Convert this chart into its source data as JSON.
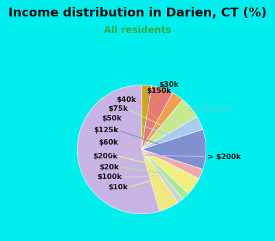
{
  "title": "Income distribution in Darien, CT (%)",
  "subtitle": "All residents",
  "bg_color": "#00EEEE",
  "chart_bg_top": "#e8f8f8",
  "chart_bg_bot": "#d8f0d8",
  "watermark": "City-Data.com",
  "title_fontsize": 13,
  "subtitle_fontsize": 10,
  "subtitle_color": "#33aa44",
  "label_fontsize": 7.5,
  "labels": [
    "$30k",
    "$150k",
    "$40k",
    "$75k",
    "$50k",
    "$125k",
    "$60k",
    "$200k",
    "$20k",
    "$100k",
    "$10k",
    "> $200k"
  ],
  "values": [
    2.5,
    5.5,
    3.0,
    5.5,
    3.5,
    10.0,
    2.5,
    4.5,
    2.0,
    1.5,
    5.0,
    54.5
  ],
  "colors": [
    "#c8a820",
    "#e87878",
    "#f0a050",
    "#c8e890",
    "#a8ccee",
    "#8090d0",
    "#f0a8b0",
    "#f0ee80",
    "#a8e898",
    "#d0d0d0",
    "#f0e880",
    "#c8b4e4"
  ]
}
